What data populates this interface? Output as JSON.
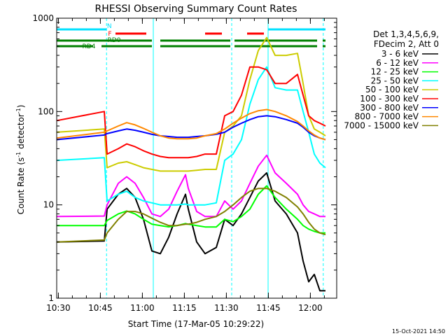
{
  "chart_data": {
    "type": "line",
    "title": "RHESSI Observing Summary Count Rates",
    "xlabel": "Start Time (17-Mar-05 10:29:22)",
    "ylabel_main": "Count Rate (s",
    "ylabel_sup1": "-1",
    "ylabel_mid": " detector",
    "ylabel_sup2": "-1",
    "ylabel_end": ")",
    "y_scale": "log",
    "ylim": [
      1,
      1000
    ],
    "xlim_minutes": [
      0,
      100
    ],
    "x_ticks": [
      {
        "m": 0.6,
        "label": "10:30"
      },
      {
        "m": 15.6,
        "label": "10:45"
      },
      {
        "m": 30.6,
        "label": "11:00"
      },
      {
        "m": 45.6,
        "label": "11:15"
      },
      {
        "m": 60.6,
        "label": "11:30"
      },
      {
        "m": 75.6,
        "label": "11:45"
      },
      {
        "m": 90.6,
        "label": "12:00"
      }
    ],
    "y_ticks": [
      {
        "v": 1,
        "label": "1"
      },
      {
        "v": 10,
        "label": "10"
      },
      {
        "v": 100,
        "label": "100"
      },
      {
        "v": 1000,
        "label": "1000"
      }
    ],
    "legend_header": [
      "Det 1,3,4,5,6,9,",
      "FDecim 2, Att 0"
    ],
    "series": [
      {
        "name": "3 - 6 keV",
        "color": "#000000",
        "points": [
          [
            0,
            4.0
          ],
          [
            17,
            4.1
          ],
          [
            18,
            9.0
          ],
          [
            22,
            13.0
          ],
          [
            25,
            15.0
          ],
          [
            28,
            12.0
          ],
          [
            31,
            7.0
          ],
          [
            34,
            3.2
          ],
          [
            37,
            3.0
          ],
          [
            40,
            4.5
          ],
          [
            43,
            8.0
          ],
          [
            46,
            13.0
          ],
          [
            47,
            9.0
          ],
          [
            50,
            4.0
          ],
          [
            53,
            3.0
          ],
          [
            57,
            3.5
          ],
          [
            60,
            7.0
          ],
          [
            63,
            6.0
          ],
          [
            66,
            8.0
          ],
          [
            69,
            12.0
          ],
          [
            72,
            18.0
          ],
          [
            75,
            22.0
          ],
          [
            78,
            11.0
          ],
          [
            82,
            8.0
          ],
          [
            86,
            5.0
          ],
          [
            88,
            2.5
          ],
          [
            90,
            1.5
          ],
          [
            92,
            1.8
          ],
          [
            94,
            1.2
          ],
          [
            96,
            1.2
          ]
        ]
      },
      {
        "name": "6 - 12 keV",
        "color": "#ff00ff",
        "points": [
          [
            0,
            7.5
          ],
          [
            17,
            7.6
          ],
          [
            18,
            10.0
          ],
          [
            22,
            17.0
          ],
          [
            25,
            20.0
          ],
          [
            28,
            17.0
          ],
          [
            31,
            12.0
          ],
          [
            34,
            8.0
          ],
          [
            37,
            7.5
          ],
          [
            40,
            9.0
          ],
          [
            43,
            14.0
          ],
          [
            46,
            21.0
          ],
          [
            47,
            15.0
          ],
          [
            50,
            8.5
          ],
          [
            53,
            7.5
          ],
          [
            57,
            7.5
          ],
          [
            60,
            11.0
          ],
          [
            63,
            9.0
          ],
          [
            66,
            11.0
          ],
          [
            69,
            17.0
          ],
          [
            72,
            26.0
          ],
          [
            75,
            34.0
          ],
          [
            78,
            22.0
          ],
          [
            82,
            17.0
          ],
          [
            86,
            13.0
          ],
          [
            88,
            10.0
          ],
          [
            90,
            8.5
          ],
          [
            92,
            8.0
          ],
          [
            94,
            7.5
          ],
          [
            96,
            7.5
          ]
        ]
      },
      {
        "name": "12 - 25 keV",
        "color": "#00ff00",
        "points": [
          [
            0,
            6.0
          ],
          [
            17,
            6.0
          ],
          [
            18,
            6.8
          ],
          [
            22,
            8.0
          ],
          [
            25,
            8.6
          ],
          [
            28,
            8.0
          ],
          [
            31,
            7.0
          ],
          [
            34,
            6.2
          ],
          [
            37,
            6.0
          ],
          [
            40,
            5.8
          ],
          [
            43,
            6.0
          ],
          [
            46,
            6.3
          ],
          [
            47,
            6.2
          ],
          [
            50,
            6.0
          ],
          [
            53,
            5.8
          ],
          [
            57,
            5.8
          ],
          [
            60,
            7.0
          ],
          [
            63,
            6.6
          ],
          [
            66,
            7.5
          ],
          [
            69,
            9.0
          ],
          [
            72,
            13.0
          ],
          [
            75,
            16.0
          ],
          [
            78,
            12.0
          ],
          [
            82,
            9.0
          ],
          [
            86,
            7.0
          ],
          [
            88,
            6.0
          ],
          [
            90,
            5.5
          ],
          [
            92,
            5.2
          ],
          [
            94,
            5.0
          ],
          [
            96,
            5.0
          ]
        ]
      },
      {
        "name": "25 - 50 keV",
        "color": "#00ffff",
        "points": [
          [
            0,
            30.0
          ],
          [
            17,
            32.0
          ],
          [
            18,
            11.0
          ],
          [
            22,
            13.0
          ],
          [
            25,
            14.0
          ],
          [
            28,
            12.0
          ],
          [
            31,
            11.0
          ],
          [
            34,
            10.5
          ],
          [
            37,
            10.0
          ],
          [
            40,
            10.0
          ],
          [
            43,
            10.0
          ],
          [
            46,
            10.2
          ],
          [
            47,
            10.0
          ],
          [
            50,
            10.0
          ],
          [
            53,
            10.0
          ],
          [
            57,
            10.5
          ],
          [
            60,
            30.0
          ],
          [
            63,
            35.0
          ],
          [
            66,
            50.0
          ],
          [
            69,
            120.0
          ],
          [
            72,
            220.0
          ],
          [
            75,
            300.0
          ],
          [
            78,
            180.0
          ],
          [
            82,
            170.0
          ],
          [
            86,
            170.0
          ],
          [
            88,
            100.0
          ],
          [
            90,
            60.0
          ],
          [
            92,
            35.0
          ],
          [
            94,
            28.0
          ],
          [
            96,
            25.0
          ]
        ]
      },
      {
        "name": "50 - 100 keV",
        "color": "#cccc00",
        "points": [
          [
            0,
            60.0
          ],
          [
            17,
            65.0
          ],
          [
            18,
            25.0
          ],
          [
            22,
            28.0
          ],
          [
            25,
            29.0
          ],
          [
            28,
            27.0
          ],
          [
            31,
            25.0
          ],
          [
            34,
            24.0
          ],
          [
            37,
            23.0
          ],
          [
            40,
            23.0
          ],
          [
            43,
            23.0
          ],
          [
            46,
            23.0
          ],
          [
            47,
            23.0
          ],
          [
            50,
            23.5
          ],
          [
            53,
            24.0
          ],
          [
            57,
            24.0
          ],
          [
            60,
            60.0
          ],
          [
            63,
            70.0
          ],
          [
            66,
            90.0
          ],
          [
            69,
            220.0
          ],
          [
            72,
            450.0
          ],
          [
            75,
            620.0
          ],
          [
            78,
            400.0
          ],
          [
            82,
            400.0
          ],
          [
            86,
            420.0
          ],
          [
            88,
            200.0
          ],
          [
            90,
            90.0
          ],
          [
            92,
            65.0
          ],
          [
            94,
            60.0
          ],
          [
            96,
            55.0
          ]
        ]
      },
      {
        "name": "100 - 300 keV",
        "color": "#ff0000",
        "points": [
          [
            0,
            80.0
          ],
          [
            17,
            100.0
          ],
          [
            18,
            35.0
          ],
          [
            22,
            40.0
          ],
          [
            25,
            45.0
          ],
          [
            28,
            42.0
          ],
          [
            31,
            38.0
          ],
          [
            34,
            35.0
          ],
          [
            37,
            33.0
          ],
          [
            40,
            32.0
          ],
          [
            43,
            32.0
          ],
          [
            46,
            32.0
          ],
          [
            47,
            32.0
          ],
          [
            50,
            33.0
          ],
          [
            53,
            35.0
          ],
          [
            57,
            35.0
          ],
          [
            60,
            90.0
          ],
          [
            63,
            100.0
          ],
          [
            66,
            150.0
          ],
          [
            69,
            300.0
          ],
          [
            72,
            300.0
          ],
          [
            75,
            280.0
          ],
          [
            78,
            200.0
          ],
          [
            82,
            200.0
          ],
          [
            86,
            250.0
          ],
          [
            88,
            150.0
          ],
          [
            90,
            90.0
          ],
          [
            92,
            80.0
          ],
          [
            94,
            75.0
          ],
          [
            96,
            70.0
          ]
        ]
      },
      {
        "name": "300 - 800 keV",
        "color": "#0000ff",
        "points": [
          [
            0,
            50.0
          ],
          [
            17,
            56.0
          ],
          [
            18,
            58.0
          ],
          [
            22,
            62.0
          ],
          [
            25,
            65.0
          ],
          [
            28,
            63.0
          ],
          [
            31,
            60.0
          ],
          [
            34,
            57.0
          ],
          [
            37,
            55.0
          ],
          [
            40,
            54.0
          ],
          [
            43,
            53.0
          ],
          [
            46,
            53.0
          ],
          [
            47,
            53.0
          ],
          [
            50,
            54.0
          ],
          [
            53,
            55.0
          ],
          [
            57,
            57.0
          ],
          [
            60,
            60.0
          ],
          [
            63,
            68.0
          ],
          [
            66,
            75.0
          ],
          [
            69,
            82.0
          ],
          [
            72,
            88.0
          ],
          [
            75,
            90.0
          ],
          [
            78,
            88.0
          ],
          [
            82,
            82.0
          ],
          [
            86,
            75.0
          ],
          [
            88,
            68.0
          ],
          [
            90,
            60.0
          ],
          [
            92,
            55.0
          ],
          [
            94,
            52.0
          ],
          [
            96,
            50.0
          ]
        ]
      },
      {
        "name": "800 - 7000 keV",
        "color": "#ff8800",
        "points": [
          [
            0,
            52.0
          ],
          [
            17,
            60.0
          ],
          [
            18,
            62.0
          ],
          [
            22,
            70.0
          ],
          [
            25,
            76.0
          ],
          [
            28,
            72.0
          ],
          [
            31,
            66.0
          ],
          [
            34,
            60.0
          ],
          [
            37,
            55.0
          ],
          [
            40,
            52.0
          ],
          [
            43,
            51.0
          ],
          [
            46,
            51.0
          ],
          [
            47,
            51.0
          ],
          [
            50,
            52.0
          ],
          [
            53,
            55.0
          ],
          [
            57,
            58.0
          ],
          [
            60,
            65.0
          ],
          [
            63,
            75.0
          ],
          [
            66,
            85.0
          ],
          [
            69,
            95.0
          ],
          [
            72,
            102.0
          ],
          [
            75,
            105.0
          ],
          [
            78,
            100.0
          ],
          [
            82,
            90.0
          ],
          [
            86,
            78.0
          ],
          [
            88,
            70.0
          ],
          [
            90,
            62.0
          ],
          [
            92,
            56.0
          ],
          [
            94,
            52.0
          ],
          [
            96,
            50.0
          ]
        ]
      },
      {
        "name": "7000 - 15000 keV",
        "color": "#808000",
        "points": [
          [
            0,
            4.0
          ],
          [
            17,
            4.2
          ],
          [
            18,
            5.0
          ],
          [
            22,
            7.0
          ],
          [
            25,
            8.5
          ],
          [
            28,
            8.5
          ],
          [
            31,
            8.0
          ],
          [
            34,
            7.2
          ],
          [
            37,
            6.5
          ],
          [
            40,
            6.0
          ],
          [
            43,
            6.0
          ],
          [
            46,
            6.2
          ],
          [
            47,
            6.2
          ],
          [
            50,
            6.5
          ],
          [
            53,
            7.0
          ],
          [
            57,
            7.5
          ],
          [
            60,
            8.5
          ],
          [
            63,
            10.0
          ],
          [
            66,
            12.0
          ],
          [
            69,
            14.0
          ],
          [
            72,
            15.0
          ],
          [
            75,
            15.0
          ],
          [
            78,
            14.0
          ],
          [
            82,
            12.0
          ],
          [
            86,
            9.5
          ],
          [
            88,
            8.0
          ],
          [
            90,
            6.5
          ],
          [
            92,
            5.5
          ],
          [
            94,
            5.0
          ],
          [
            96,
            4.8
          ]
        ]
      }
    ],
    "flag_bars": [
      {
        "name": "N",
        "color": "#00e0ff",
        "segments": [
          [
            0,
            17.8
          ],
          [
            75.5,
            96
          ]
        ],
        "level": 0
      },
      {
        "name": "F",
        "color": "#ff0000",
        "segments": [
          [
            21,
            32
          ],
          [
            53,
            59
          ],
          [
            68,
            74
          ]
        ],
        "level": 1
      },
      {
        "name": "RD0",
        "color": "#008000",
        "segments": [
          [
            0,
            34
          ],
          [
            37,
            62
          ],
          [
            63.5,
            93
          ],
          [
            95,
            96
          ]
        ],
        "level": 2
      },
      {
        "name": "RD4",
        "color": "#008000",
        "segments": [
          [
            0,
            13
          ],
          [
            16,
            34
          ],
          [
            37,
            62
          ],
          [
            63.5,
            93
          ],
          [
            95,
            96
          ]
        ],
        "level": 3
      }
    ],
    "vertical_markers": [
      {
        "m": 17.8,
        "style": "dashed",
        "color": "#00ffff"
      },
      {
        "m": 34.5,
        "style": "solid",
        "color": "#00ffff"
      },
      {
        "m": 62.5,
        "style": "dashed",
        "color": "#00ffff"
      },
      {
        "m": 75.5,
        "style": "solid",
        "color": "#00ffff"
      },
      {
        "m": 95.2,
        "style": "dashed",
        "color": "#00ffff"
      }
    ]
  },
  "footer_stamp": "15-Oct-2021 14:50"
}
